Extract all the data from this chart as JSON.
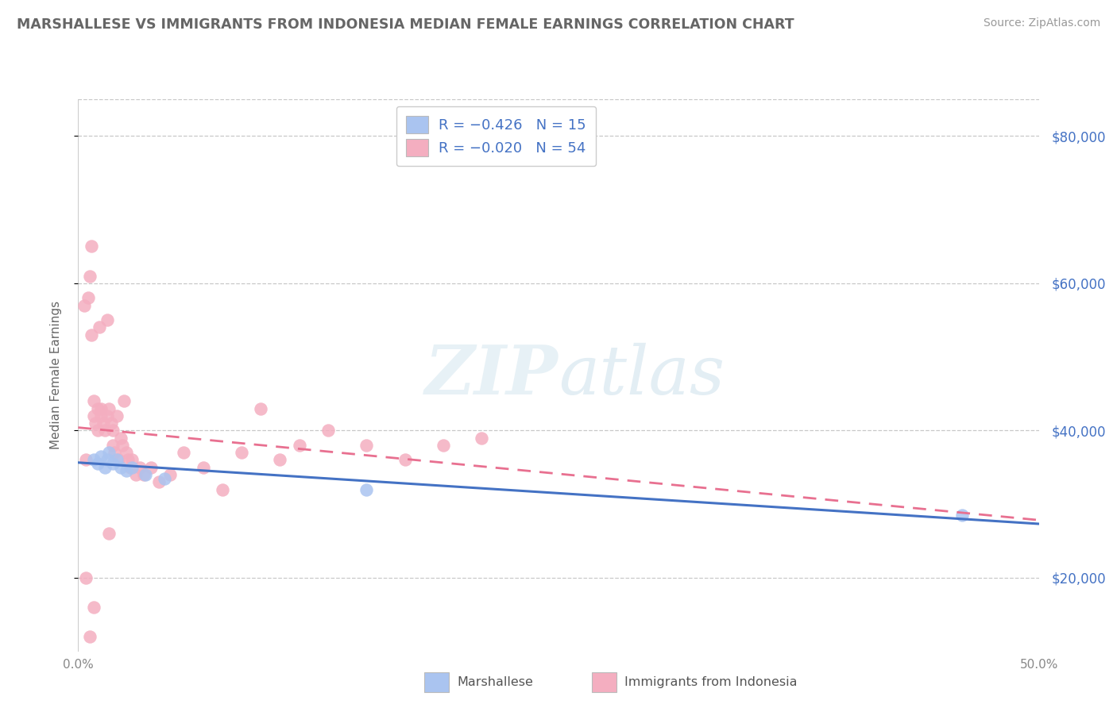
{
  "title": "MARSHALLESE VS IMMIGRANTS FROM INDONESIA MEDIAN FEMALE EARNINGS CORRELATION CHART",
  "source": "Source: ZipAtlas.com",
  "xlabel_bottom": [
    "Marshallese",
    "Immigrants from Indonesia"
  ],
  "ylabel": "Median Female Earnings",
  "xlim": [
    0.0,
    0.5
  ],
  "ylim": [
    10000,
    85000
  ],
  "yticks": [
    20000,
    40000,
    60000,
    80000
  ],
  "ytick_labels": [
    "$20,000",
    "$40,000",
    "$60,000",
    "$80,000"
  ],
  "xticks": [
    0.0,
    0.1,
    0.2,
    0.3,
    0.4,
    0.5
  ],
  "xtick_labels": [
    "0.0%",
    "",
    "",
    "",
    "",
    "50.0%"
  ],
  "legend_r_blue": "R = −0.426",
  "legend_n_blue": "N = 15",
  "legend_r_pink": "R = −0.020",
  "legend_n_pink": "N = 54",
  "blue_color": "#aac4f0",
  "pink_color": "#f4aec0",
  "blue_line_color": "#4472c4",
  "pink_line_color": "#e87090",
  "watermark_zip": "ZIP",
  "watermark_atlas": "atlas",
  "background_color": "#ffffff",
  "plot_bg_color": "#ffffff",
  "grid_color": "#c8c8c8",
  "title_color": "#666666",
  "axis_label_color": "#666666",
  "tick_color": "#888888",
  "right_tick_color": "#4472c4",
  "legend_text_color": "#4472c4",
  "blue_scatter_x": [
    0.008,
    0.01,
    0.012,
    0.014,
    0.015,
    0.016,
    0.018,
    0.02,
    0.022,
    0.025,
    0.028,
    0.035,
    0.045,
    0.15,
    0.46
  ],
  "blue_scatter_y": [
    36000,
    35500,
    36500,
    35000,
    36000,
    37000,
    35500,
    36000,
    35000,
    34500,
    35000,
    34000,
    33500,
    32000,
    28500
  ],
  "pink_scatter_x": [
    0.003,
    0.004,
    0.005,
    0.006,
    0.007,
    0.007,
    0.008,
    0.008,
    0.009,
    0.01,
    0.01,
    0.011,
    0.012,
    0.012,
    0.013,
    0.014,
    0.015,
    0.015,
    0.016,
    0.017,
    0.018,
    0.018,
    0.019,
    0.02,
    0.021,
    0.022,
    0.023,
    0.024,
    0.025,
    0.026,
    0.027,
    0.028,
    0.03,
    0.032,
    0.034,
    0.038,
    0.042,
    0.048,
    0.055,
    0.065,
    0.075,
    0.085,
    0.095,
    0.105,
    0.115,
    0.13,
    0.15,
    0.17,
    0.19,
    0.21,
    0.016,
    0.008,
    0.006,
    0.004
  ],
  "pink_scatter_y": [
    57000,
    36000,
    58000,
    61000,
    65000,
    53000,
    44000,
    42000,
    41000,
    43000,
    40000,
    54000,
    42000,
    43000,
    41000,
    40000,
    55000,
    42000,
    43000,
    41000,
    40000,
    38000,
    37000,
    42000,
    36000,
    39000,
    38000,
    44000,
    37000,
    36000,
    35000,
    36000,
    34000,
    35000,
    34000,
    35000,
    33000,
    34000,
    37000,
    35000,
    32000,
    37000,
    43000,
    36000,
    38000,
    40000,
    38000,
    36000,
    38000,
    39000,
    26000,
    16000,
    12000,
    20000
  ]
}
